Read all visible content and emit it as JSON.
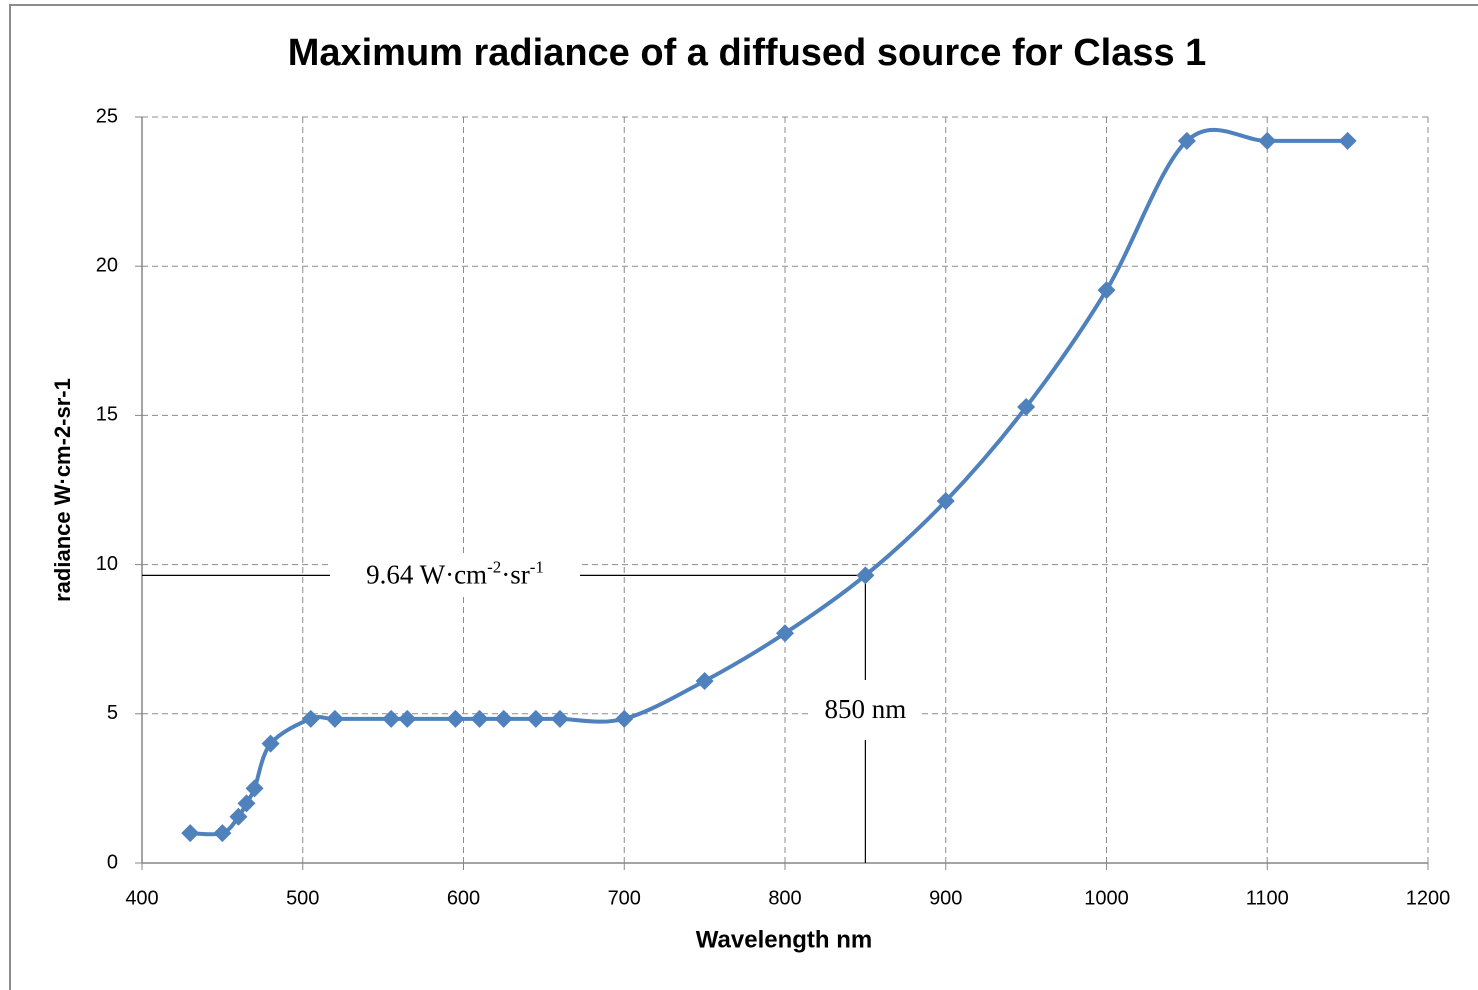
{
  "chart_data": {
    "type": "line",
    "title": "Maximum radiance of a diffused source for Class 1",
    "x_label": "Wavelength nm",
    "y_label": "radiance W·cm-2-sr-1",
    "x": [
      430,
      450,
      460,
      465,
      470,
      480,
      505,
      520,
      555,
      565,
      595,
      610,
      625,
      645,
      660,
      700,
      750,
      800,
      850,
      900,
      950,
      1000,
      1050,
      1100,
      1150
    ],
    "series": [
      {
        "name": "radiance",
        "color": "#4f81bd",
        "values": [
          1.0,
          1.0,
          1.55,
          2.0,
          2.5,
          4.0,
          4.83,
          4.83,
          4.83,
          4.83,
          4.83,
          4.83,
          4.83,
          4.83,
          4.83,
          4.83,
          6.1,
          7.7,
          9.64,
          12.13,
          15.28,
          19.2,
          24.2,
          24.2,
          24.2
        ]
      }
    ],
    "xlim": [
      400,
      1200
    ],
    "xticks": [
      400,
      500,
      600,
      700,
      800,
      900,
      1000,
      1100,
      1200
    ],
    "ylim": [
      0,
      25
    ],
    "yticks": [
      0,
      5,
      10,
      15,
      20,
      25
    ],
    "grid": true,
    "annotations": {
      "hline": {
        "value": 9.64,
        "label_parts": [
          "9.64 W·cm",
          "-2",
          "·sr",
          "-1"
        ]
      },
      "vline": {
        "value": 850,
        "label": "850 nm"
      }
    }
  }
}
